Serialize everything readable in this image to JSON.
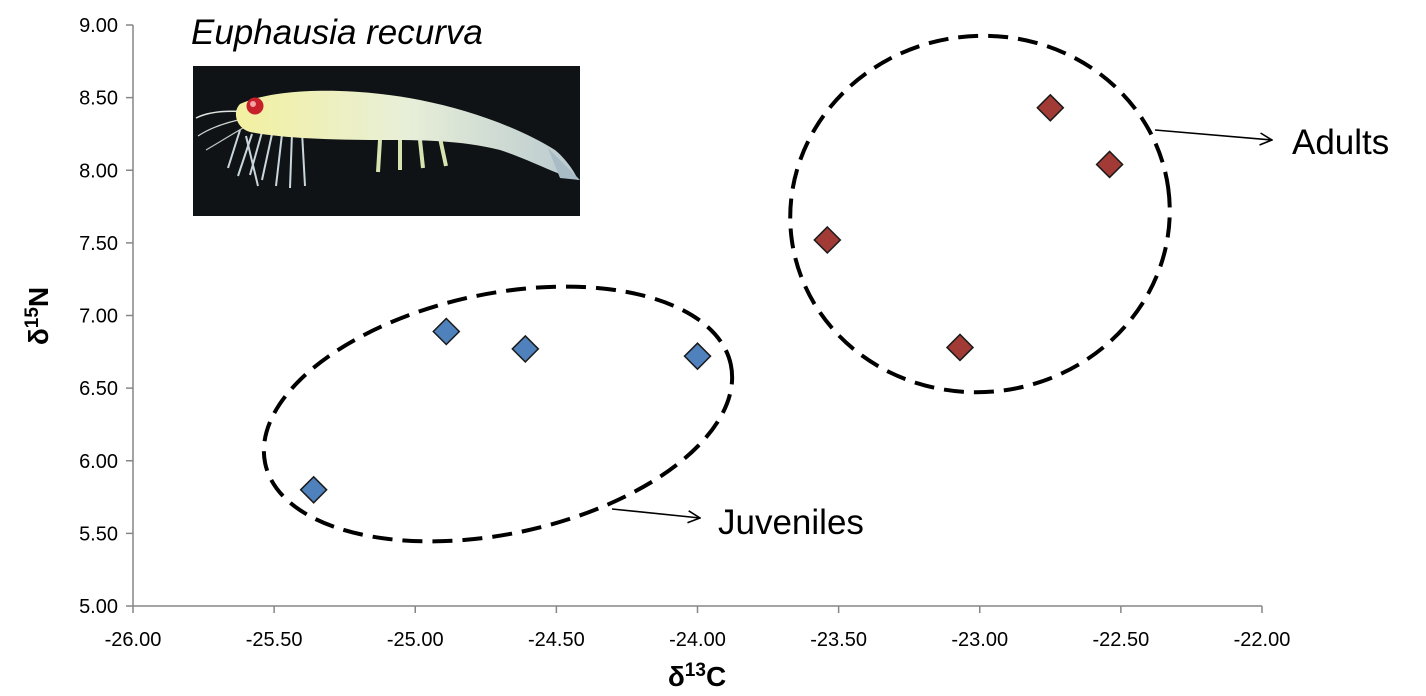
{
  "chart_data": {
    "type": "scatter",
    "title": "Euphausia recurva",
    "xlabel": {
      "prefix": "δ",
      "sup": "13",
      "suffix": "C"
    },
    "ylabel": {
      "prefix": "δ",
      "sup": "15",
      "suffix": "N"
    },
    "xlim": [
      -26,
      -22
    ],
    "ylim": [
      5,
      9
    ],
    "x_ticks": [
      "-26.00",
      "-25.50",
      "-25.00",
      "-24.50",
      "-24.00",
      "-23.50",
      "-23.00",
      "-22.50",
      "-22.00"
    ],
    "y_ticks": [
      "5.00",
      "5.50",
      "6.00",
      "6.50",
      "7.00",
      "7.50",
      "8.00",
      "8.50",
      "9.00"
    ],
    "grid": false,
    "series": [
      {
        "name": "Juveniles",
        "color": "#4F81BD",
        "marker": "diamond",
        "points": [
          {
            "x": -25.36,
            "y": 5.8
          },
          {
            "x": -24.89,
            "y": 6.89
          },
          {
            "x": -24.61,
            "y": 6.77
          },
          {
            "x": -24.0,
            "y": 6.72
          }
        ]
      },
      {
        "name": "Adults",
        "color": "#A23B36",
        "marker": "diamond",
        "points": [
          {
            "x": -23.54,
            "y": 7.52
          },
          {
            "x": -23.07,
            "y": 6.78
          },
          {
            "x": -22.75,
            "y": 8.43
          },
          {
            "x": -22.54,
            "y": 8.04
          }
        ]
      }
    ],
    "annotations": [
      "Juveniles",
      "Adults"
    ],
    "image": "krill-photo"
  }
}
